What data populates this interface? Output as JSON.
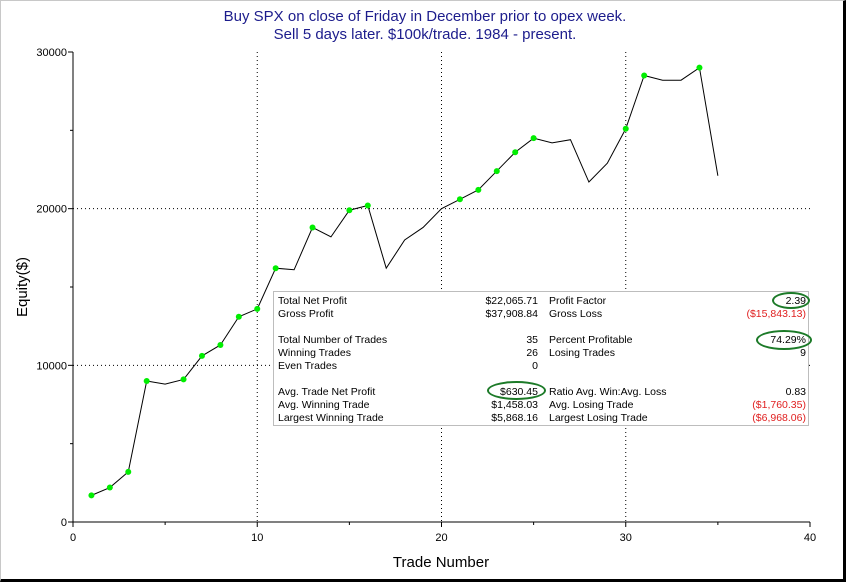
{
  "chart_data": {
    "type": "line",
    "title": "Buy SPX on close of Friday in December prior to opex week.",
    "subtitle": "Sell 5 days later. $100k/trade. 1984 - present.",
    "xlabel": "Trade Number",
    "ylabel": "Equity($)",
    "xlim": [
      0,
      40
    ],
    "ylim": [
      0,
      30000
    ],
    "xticks": [
      0,
      10,
      20,
      30,
      40
    ],
    "yticks": [
      0,
      10000,
      20000,
      30000
    ],
    "xtick_labels": [
      "0",
      "10",
      "20",
      "30",
      "40"
    ],
    "ytick_labels": [
      "0",
      "10000",
      "20000",
      "30000"
    ],
    "grid": "dotted at 10/20/30 and 10000/20000",
    "line_color": "#000000",
    "marker_color": "#00ee00",
    "x": [
      1,
      2,
      3,
      4,
      5,
      6,
      7,
      8,
      9,
      10,
      11,
      12,
      13,
      14,
      15,
      16,
      17,
      18,
      19,
      20,
      21,
      22,
      23,
      24,
      25,
      26,
      27,
      28,
      29,
      30,
      31,
      32,
      33,
      34,
      35
    ],
    "y": [
      1700,
      2200,
      3200,
      9000,
      8800,
      9100,
      10600,
      11300,
      13100,
      13600,
      16200,
      16100,
      18800,
      18200,
      19900,
      20200,
      16200,
      18000,
      18800,
      20000,
      20600,
      21200,
      22400,
      23600,
      24500,
      24200,
      24400,
      21700,
      22900,
      25100,
      28500,
      28200,
      28200,
      29000,
      22100
    ],
    "markers": [
      1,
      2,
      3,
      4,
      6,
      7,
      8,
      9,
      10,
      11,
      13,
      15,
      16,
      21,
      22,
      23,
      24,
      25,
      30,
      31,
      34
    ]
  },
  "stats": {
    "left": [
      {
        "label": "Total Net Profit",
        "value": "$22,065.71"
      },
      {
        "label": "Gross Profit",
        "value": "$37,908.84"
      },
      {
        "label": "Total Number of Trades",
        "value": "35"
      },
      {
        "label": "Winning Trades",
        "value": "26"
      },
      {
        "label": "Even Trades",
        "value": "0"
      },
      {
        "label": "Avg. Trade Net Profit",
        "value": "$630.45"
      },
      {
        "label": "Avg. Winning Trade",
        "value": "$1,458.03"
      },
      {
        "label": "Largest Winning Trade",
        "value": "$5,868.16"
      }
    ],
    "right": [
      {
        "label": "Profit Factor",
        "value": "2.39"
      },
      {
        "label": "Gross Loss",
        "value": "($15,843.13)"
      },
      {
        "label": "Percent Profitable",
        "value": "74.29%"
      },
      {
        "label": "Losing Trades",
        "value": "9"
      },
      {
        "label": "Ratio Avg. Win:Avg. Loss",
        "value": "0.83"
      },
      {
        "label": "Avg. Losing Trade",
        "value": "($1,760.35)"
      },
      {
        "label": "Largest Losing Trade",
        "value": "($6,968.06)"
      }
    ],
    "highlight_color": "#1c7a28",
    "negative_color": "#e02020"
  }
}
